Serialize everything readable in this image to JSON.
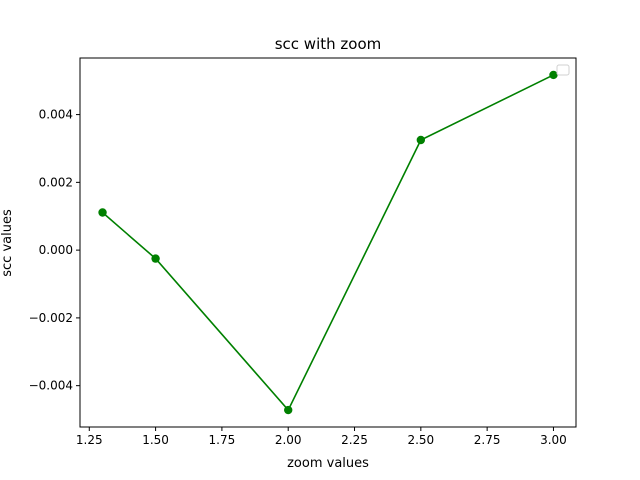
{
  "chart_data": {
    "type": "line",
    "title": "scc with zoom",
    "xlabel": "zoom values",
    "ylabel": "scc values",
    "x": [
      1.3,
      1.5,
      2.0,
      2.5,
      3.0
    ],
    "series": [
      {
        "values": [
          0.00111,
          -0.00025,
          -0.00472,
          0.00325,
          0.00517
        ],
        "color": "#008000",
        "marker": "circle"
      }
    ],
    "xlim": [
      1.215,
      3.085
    ],
    "ylim": [
      -0.00522,
      0.00567
    ],
    "xticks": [
      1.25,
      1.5,
      1.75,
      2.0,
      2.25,
      2.5,
      2.75,
      3.0
    ],
    "xtick_labels": [
      "1.25",
      "1.50",
      "1.75",
      "2.00",
      "2.25",
      "2.50",
      "2.75",
      "3.00"
    ],
    "yticks": [
      -0.004,
      -0.002,
      0.0,
      0.002,
      0.004
    ],
    "ytick_labels": [
      "−0.004",
      "−0.002",
      "0.000",
      "0.002",
      "0.004"
    ],
    "grid": false,
    "legend": {
      "placement": "top-right",
      "entries": []
    }
  }
}
